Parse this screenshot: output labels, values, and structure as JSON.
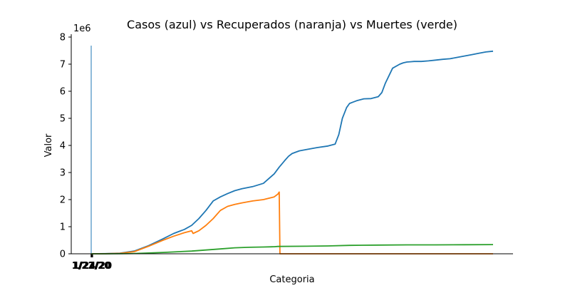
{
  "chart_data": {
    "type": "line",
    "title": "Casos (azul) vs Recuperados (naranja) vs Muertes (verde)",
    "xlabel": "Categoria",
    "ylabel": "Valor",
    "y_multiplier": "1e6",
    "ylim": [
      0,
      8
    ],
    "yticks": [
      0,
      1,
      2,
      3,
      4,
      5,
      6,
      7,
      8
    ],
    "xtick_labels": [
      "1/22/20",
      "1/23/20",
      "1/24/20"
    ],
    "xlim": [
      0,
      560
    ],
    "grid": false,
    "legend": "none",
    "series": [
      {
        "color": "#1f77b4",
        "x": [
          0,
          20,
          40,
          60,
          80,
          100,
          115,
          130,
          140,
          150,
          160,
          170,
          180,
          190,
          200,
          210,
          225,
          240,
          255,
          262,
          270,
          275,
          280,
          285,
          290,
          300,
          315,
          330,
          340,
          345,
          350,
          353,
          356,
          360,
          365,
          370,
          380,
          390,
          400,
          405,
          410,
          420,
          430,
          435,
          440,
          445,
          450,
          455,
          460,
          470,
          480,
          490,
          500,
          510,
          520,
          530,
          540,
          550,
          560
        ],
        "y": [
          0,
          0.005,
          0.02,
          0.1,
          0.3,
          0.55,
          0.75,
          0.9,
          1.05,
          1.3,
          1.6,
          1.95,
          2.1,
          2.22,
          2.33,
          2.4,
          2.48,
          2.6,
          2.95,
          3.2,
          3.45,
          3.6,
          3.7,
          3.75,
          3.8,
          3.85,
          3.92,
          3.98,
          4.05,
          4.4,
          5.0,
          5.2,
          5.4,
          5.55,
          5.6,
          5.65,
          5.72,
          5.73,
          5.8,
          5.95,
          6.3,
          6.85,
          7.0,
          7.05,
          7.08,
          7.09,
          7.1,
          7.1,
          7.1,
          7.12,
          7.15,
          7.18,
          7.2,
          7.25,
          7.3,
          7.35,
          7.4,
          7.45,
          7.48
        ]
      },
      {
        "color": "#ff7f0e",
        "x": [
          0,
          20,
          40,
          60,
          80,
          100,
          115,
          130,
          140,
          142,
          150,
          160,
          170,
          180,
          190,
          200,
          210,
          225,
          240,
          255,
          260,
          262,
          263,
          300,
          400,
          560
        ],
        "y": [
          0,
          0.003,
          0.015,
          0.08,
          0.28,
          0.5,
          0.65,
          0.78,
          0.85,
          0.75,
          0.85,
          1.05,
          1.3,
          1.6,
          1.75,
          1.82,
          1.88,
          1.95,
          2.0,
          2.1,
          2.2,
          2.28,
          0,
          0,
          0,
          0
        ]
      },
      {
        "color": "#2ca02c",
        "x": [
          0,
          20,
          40,
          60,
          80,
          100,
          140,
          160,
          180,
          200,
          220,
          240,
          255,
          260,
          300,
          330,
          360,
          400,
          440,
          480,
          520,
          560
        ],
        "y": [
          0,
          0.0,
          0.002,
          0.01,
          0.03,
          0.05,
          0.1,
          0.14,
          0.18,
          0.22,
          0.24,
          0.25,
          0.26,
          0.27,
          0.28,
          0.29,
          0.31,
          0.32,
          0.33,
          0.33,
          0.335,
          0.34
        ]
      }
    ]
  }
}
